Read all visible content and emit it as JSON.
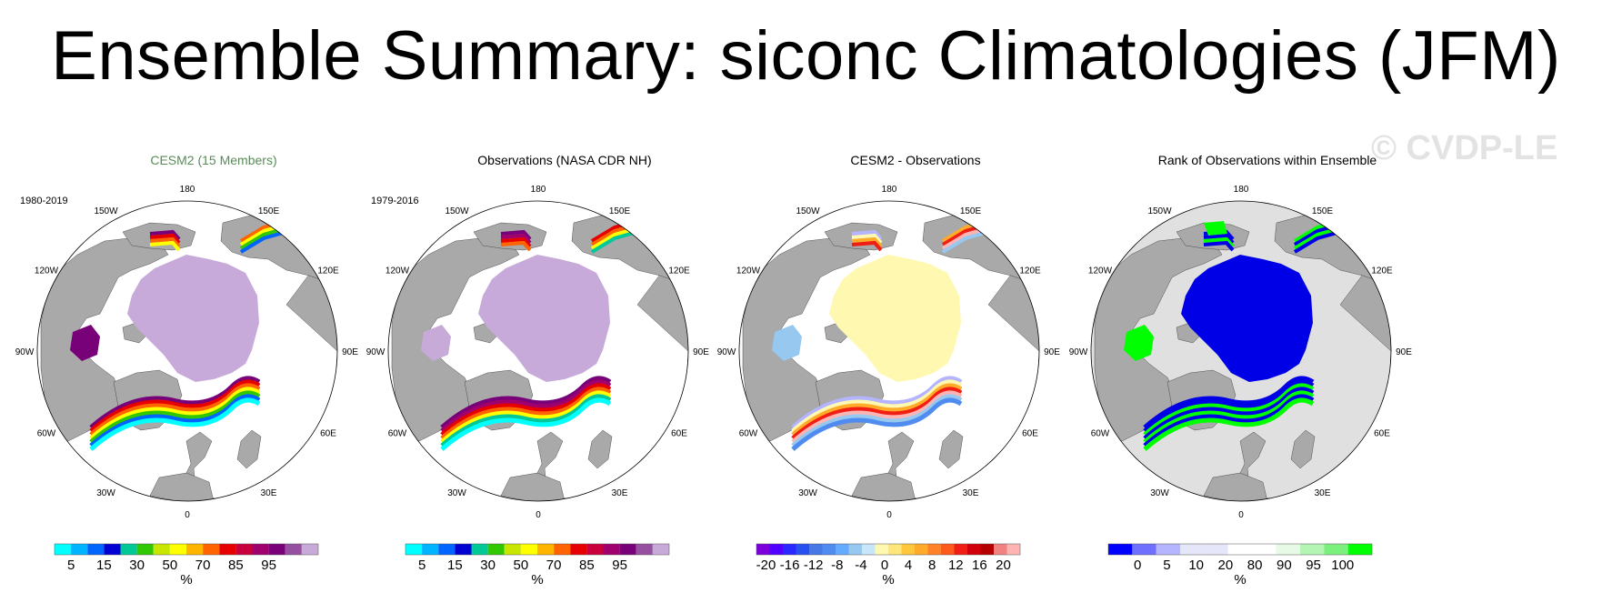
{
  "title": "Ensemble Summary: siconc Climatologies (JFM)",
  "watermark": "© CVDP-LE",
  "colors": {
    "land": "#a9a9a9",
    "ocean": "#ffffff",
    "panel1_fill": "#c7aad9",
    "panel3_fill": "#fff8b0",
    "panel4_ocean": "#e0e0e0",
    "rank_low": "#0000e6",
    "rank_high": "#00ff00"
  },
  "lon_labels": [
    "180",
    "150E",
    "120E",
    "90E",
    "60E",
    "30E",
    "0",
    "30W",
    "60W",
    "90W",
    "120W",
    "150W"
  ],
  "panels": [
    {
      "title": "CESM2 (15 Members)",
      "title_color": "#5a8a5a",
      "period": "1980-2019",
      "colorbar": {
        "colors": [
          "#00ffff",
          "#00b4ff",
          "#0064ff",
          "#0000d2",
          "#00c896",
          "#32c800",
          "#c8e600",
          "#ffff00",
          "#ffb400",
          "#ff6400",
          "#e60000",
          "#c8003c",
          "#a0006e",
          "#780078",
          "#9650a0",
          "#c8aad9"
        ],
        "labels": [
          "5",
          "15",
          "30",
          "50",
          "70",
          "85",
          "95"
        ],
        "unit": "%"
      }
    },
    {
      "title": "Observations (NASA CDR NH)",
      "title_color": "#000000",
      "period": "1979-2016",
      "colorbar": {
        "colors": [
          "#00ffff",
          "#00b4ff",
          "#0064ff",
          "#0000d2",
          "#00c896",
          "#32c800",
          "#c8e600",
          "#ffff00",
          "#ffb400",
          "#ff6400",
          "#e60000",
          "#c8003c",
          "#a0006e",
          "#780078",
          "#9650a0",
          "#c8aad9"
        ],
        "labels": [
          "5",
          "15",
          "30",
          "50",
          "70",
          "85",
          "95"
        ],
        "unit": "%"
      }
    },
    {
      "title": "CESM2 - Observations",
      "title_color": "#000000",
      "period": "",
      "colorbar": {
        "colors": [
          "#7d00dc",
          "#5000ff",
          "#2828ff",
          "#2850f0",
          "#4678e6",
          "#508cf0",
          "#64aaff",
          "#96c8f0",
          "#c8e6fa",
          "#fff8b0",
          "#ffe678",
          "#ffc83c",
          "#ffaa28",
          "#ff8228",
          "#ff5a1e",
          "#f01e14",
          "#d2000a",
          "#b40000",
          "#f08282",
          "#ffb4b4"
        ],
        "labels": [
          "-20",
          "-16",
          "-12",
          "-8",
          "-4",
          "0",
          "4",
          "8",
          "12",
          "16",
          "20"
        ],
        "unit": "%"
      }
    },
    {
      "title": "Rank of Observations within Ensemble",
      "title_color": "#000000",
      "period": "",
      "colorbar": {
        "colors": [
          "#0000ff",
          "#7070ff",
          "#b4b4ff",
          "#e6e6fa",
          "#e6e6fa",
          "#ffffff",
          "#ffffff",
          "#e6fae6",
          "#b4f5b4",
          "#7cf07c",
          "#00ff00"
        ],
        "labels": [
          "0",
          "5",
          "10",
          "20",
          "80",
          "90",
          "95",
          "100"
        ],
        "unit": "%"
      }
    }
  ]
}
